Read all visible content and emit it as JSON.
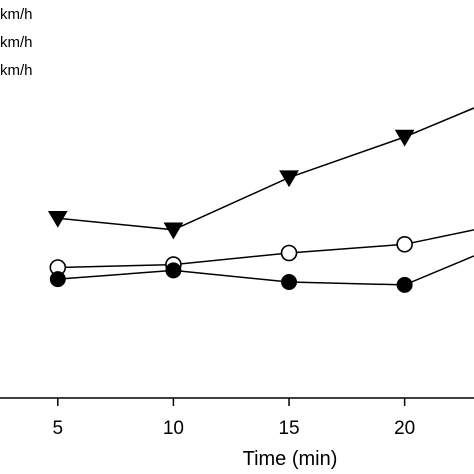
{
  "chart_data": {
    "type": "line",
    "title": "",
    "xlabel": "Time (min)",
    "ylabel": "",
    "xticks": [
      5,
      10,
      15,
      20
    ],
    "xlim": [
      2.5,
      23
    ],
    "ylim": [
      0,
      1
    ],
    "grid": false,
    "legend": {
      "placement": "top-left",
      "entries": [
        "km/h",
        "km/h",
        "km/h"
      ]
    },
    "series": [
      {
        "marker": "triangle-down-filled",
        "x": [
          5,
          10,
          15,
          20,
          23
        ],
        "y": [
          0.62,
          0.58,
          0.76,
          0.9,
          1.0
        ]
      },
      {
        "marker": "circle-open",
        "x": [
          5,
          10,
          15,
          20,
          23
        ],
        "y": [
          0.45,
          0.46,
          0.5,
          0.53,
          0.58
        ]
      },
      {
        "marker": "circle-filled",
        "x": [
          5,
          10,
          15,
          20,
          23
        ],
        "y": [
          0.41,
          0.44,
          0.4,
          0.39,
          0.49
        ]
      }
    ]
  }
}
